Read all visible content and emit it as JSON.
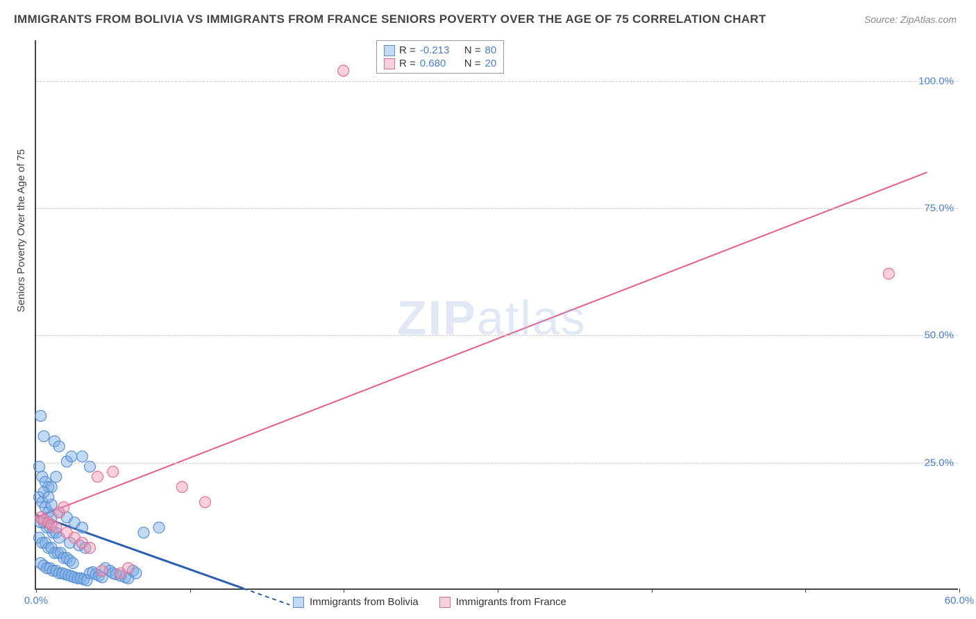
{
  "title": "IMMIGRANTS FROM BOLIVIA VS IMMIGRANTS FROM FRANCE SENIORS POVERTY OVER THE AGE OF 75 CORRELATION CHART",
  "source": "Source: ZipAtlas.com",
  "watermark_bold": "ZIP",
  "watermark_thin": "atlas",
  "chart": {
    "type": "scatter",
    "y_axis_title": "Seniors Poverty Over the Age of 75",
    "background_color": "#ffffff",
    "grid_color": "#cccccc",
    "axis_color": "#444444",
    "tick_label_color": "#4a7fc5",
    "xlim": [
      0,
      60
    ],
    "ylim": [
      0,
      108
    ],
    "x_ticks": [
      0,
      10,
      20,
      30,
      40,
      50,
      60
    ],
    "x_tick_labels": [
      "0.0%",
      "",
      "",
      "",
      "",
      "",
      "60.0%"
    ],
    "y_ticks": [
      25,
      50,
      75,
      100
    ],
    "y_tick_labels": [
      "25.0%",
      "50.0%",
      "75.0%",
      "100.0%"
    ],
    "series": [
      {
        "name": "Immigrants from Bolivia",
        "color_fill": "rgba(120,170,230,0.45)",
        "color_stroke": "#5a8fd0",
        "marker_radius": 8,
        "R": "-0.213",
        "N": "80",
        "regression": {
          "x1": 0,
          "y1": 14.5,
          "x2": 13.5,
          "y2": 0,
          "dash_extend_x": 13.5,
          "color": "#2a5fb0",
          "width": 3
        },
        "points": [
          [
            0.3,
            34
          ],
          [
            0.5,
            30
          ],
          [
            1.2,
            29
          ],
          [
            1.5,
            28
          ],
          [
            0.2,
            24
          ],
          [
            0.4,
            22
          ],
          [
            0.6,
            21
          ],
          [
            0.8,
            20
          ],
          [
            1.0,
            20
          ],
          [
            1.3,
            22
          ],
          [
            2.0,
            25
          ],
          [
            2.3,
            26
          ],
          [
            3.0,
            26
          ],
          [
            3.5,
            24
          ],
          [
            0.2,
            18
          ],
          [
            0.4,
            17
          ],
          [
            0.6,
            16
          ],
          [
            0.8,
            15
          ],
          [
            1.0,
            14
          ],
          [
            0.3,
            13
          ],
          [
            0.5,
            13
          ],
          [
            0.7,
            12
          ],
          [
            0.9,
            12
          ],
          [
            1.1,
            11
          ],
          [
            1.3,
            11
          ],
          [
            1.5,
            10
          ],
          [
            0.2,
            10
          ],
          [
            0.4,
            9
          ],
          [
            0.6,
            9
          ],
          [
            0.8,
            8
          ],
          [
            1.0,
            8
          ],
          [
            1.2,
            7
          ],
          [
            1.4,
            7
          ],
          [
            1.6,
            7
          ],
          [
            1.8,
            6
          ],
          [
            2.0,
            6
          ],
          [
            2.2,
            5.5
          ],
          [
            2.4,
            5
          ],
          [
            0.3,
            5
          ],
          [
            0.5,
            4.5
          ],
          [
            0.7,
            4
          ],
          [
            0.9,
            4
          ],
          [
            1.1,
            3.5
          ],
          [
            1.3,
            3.5
          ],
          [
            1.5,
            3
          ],
          [
            1.7,
            3
          ],
          [
            1.9,
            2.8
          ],
          [
            2.1,
            2.6
          ],
          [
            2.3,
            2.4
          ],
          [
            2.5,
            2.2
          ],
          [
            2.7,
            2
          ],
          [
            2.9,
            2
          ],
          [
            3.1,
            1.8
          ],
          [
            3.3,
            1.6
          ],
          [
            3.5,
            3
          ],
          [
            3.7,
            3.2
          ],
          [
            3.9,
            2.8
          ],
          [
            4.1,
            2.5
          ],
          [
            4.3,
            2.2
          ],
          [
            4.5,
            4
          ],
          [
            4.8,
            3.5
          ],
          [
            5.0,
            3
          ],
          [
            5.2,
            2.8
          ],
          [
            5.5,
            2.5
          ],
          [
            5.8,
            2.2
          ],
          [
            6.0,
            2
          ],
          [
            6.3,
            3.5
          ],
          [
            6.5,
            3
          ],
          [
            1.0,
            16.5
          ],
          [
            1.5,
            15
          ],
          [
            2.0,
            14
          ],
          [
            2.5,
            13
          ],
          [
            3.0,
            12
          ],
          [
            0.5,
            19
          ],
          [
            0.8,
            18
          ],
          [
            2.2,
            9
          ],
          [
            2.8,
            8.5
          ],
          [
            3.2,
            8
          ],
          [
            7.0,
            11
          ],
          [
            8.0,
            12
          ]
        ]
      },
      {
        "name": "Immigrants from France",
        "color_fill": "rgba(240,150,180,0.45)",
        "color_stroke": "#e07090",
        "marker_radius": 8,
        "R": "0.680",
        "N": "20",
        "regression": {
          "x1": 0,
          "y1": 14,
          "x2": 58,
          "y2": 82,
          "color": "#e85a8a",
          "width": 2
        },
        "points": [
          [
            0.3,
            14
          ],
          [
            0.5,
            13.5
          ],
          [
            0.8,
            13
          ],
          [
            1.0,
            12.5
          ],
          [
            1.3,
            12
          ],
          [
            1.5,
            15
          ],
          [
            1.8,
            16
          ],
          [
            2.0,
            11
          ],
          [
            2.5,
            10
          ],
          [
            3.0,
            9
          ],
          [
            3.5,
            8
          ],
          [
            4.0,
            22
          ],
          [
            5.0,
            23
          ],
          [
            4.3,
            3.5
          ],
          [
            5.5,
            3
          ],
          [
            6.0,
            4
          ],
          [
            9.5,
            20
          ],
          [
            11.0,
            17
          ],
          [
            20.0,
            102
          ],
          [
            55.5,
            62
          ]
        ]
      }
    ]
  },
  "legend_top": {
    "rows": [
      {
        "swatch_fill": "rgba(120,170,230,0.45)",
        "swatch_border": "#5a8fd0",
        "R_label": "R =",
        "R_value": "-0.213",
        "N_label": "N =",
        "N_value": "80"
      },
      {
        "swatch_fill": "rgba(240,150,180,0.45)",
        "swatch_border": "#e07090",
        "R_label": "R =",
        "R_value": "0.680",
        "N_label": "N =",
        "N_value": "20"
      }
    ]
  },
  "legend_bottom": {
    "items": [
      {
        "swatch_fill": "rgba(120,170,230,0.45)",
        "swatch_border": "#5a8fd0",
        "label": "Immigrants from Bolivia"
      },
      {
        "swatch_fill": "rgba(240,150,180,0.45)",
        "swatch_border": "#e07090",
        "label": "Immigrants from France"
      }
    ]
  }
}
